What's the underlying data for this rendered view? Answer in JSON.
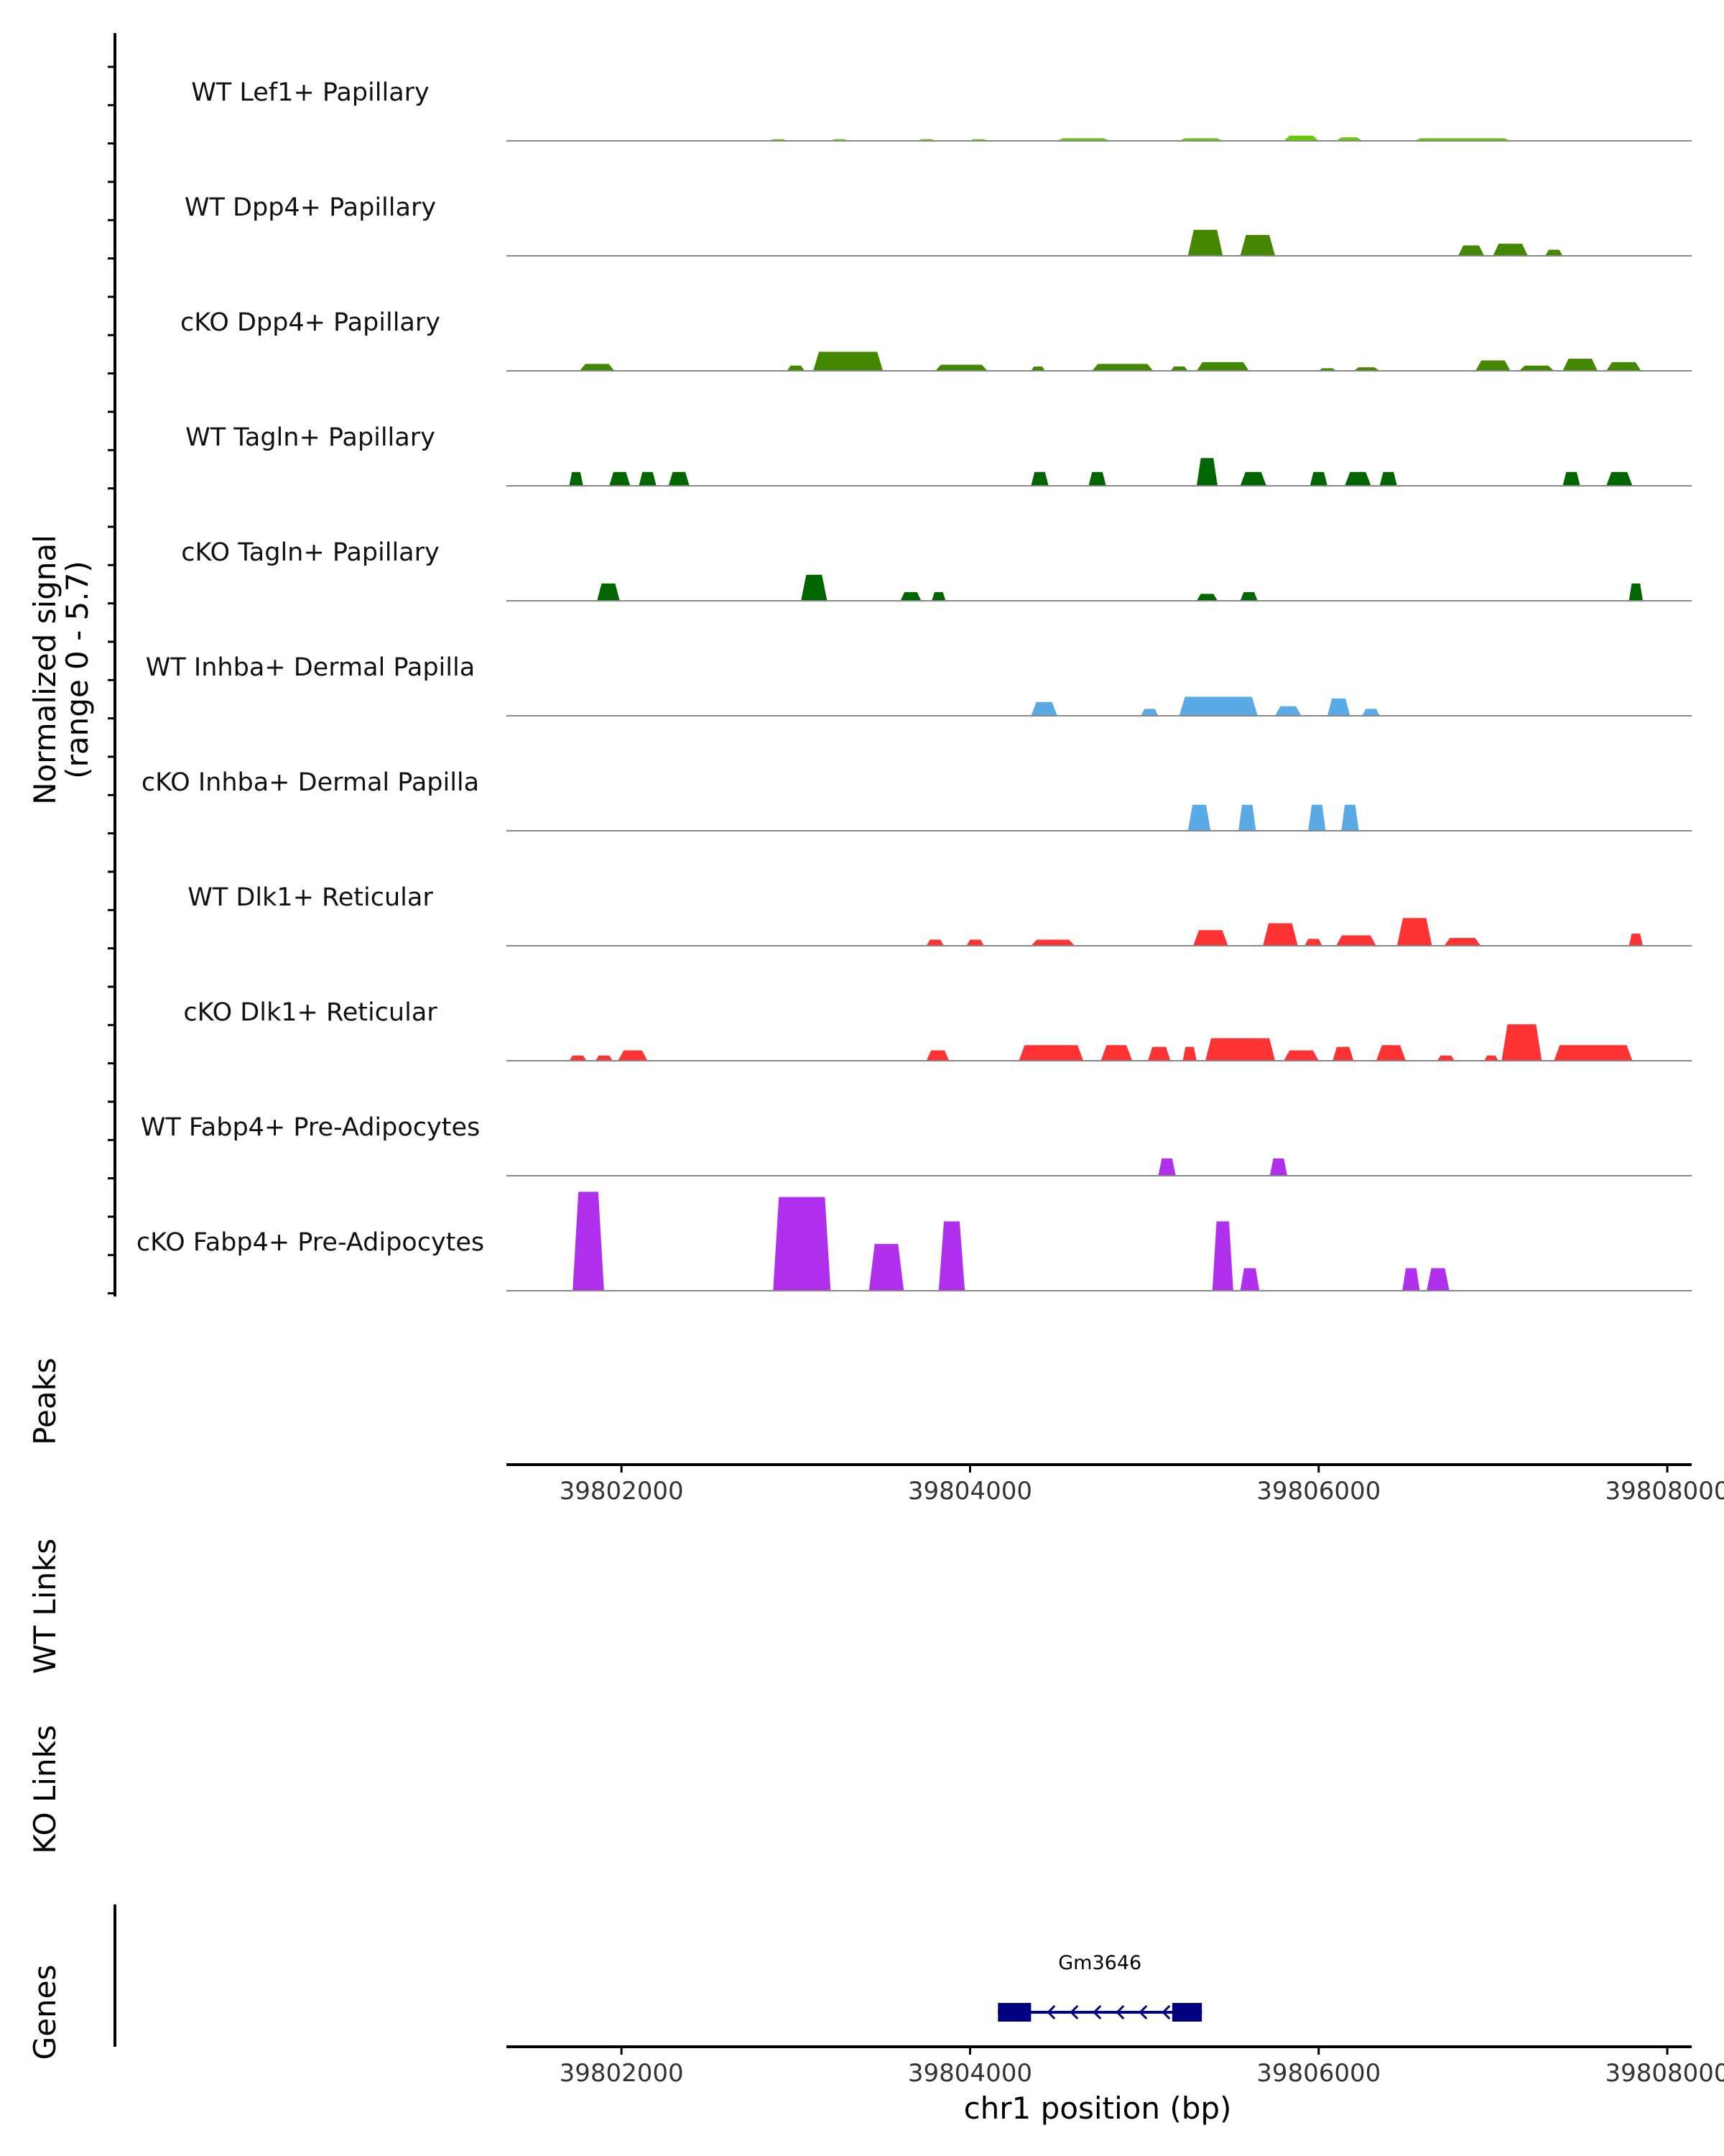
{
  "chart_data": {
    "type": "area",
    "title": "",
    "chromosome": "chr1",
    "xlabel": "chr1 position (bp)",
    "ylabel_line1": "Normalized signal",
    "ylabel_line2": "(range 0 - 5.7)",
    "ylim": [
      0,
      5.7
    ],
    "xlim": [
      39801340,
      39808140
    ],
    "x_ticks": [
      39802000,
      39804000,
      39806000,
      39808000
    ],
    "x_tick_labels_peaks": [
      "39802000",
      "39804000",
      "39806000",
      "39808000"
    ],
    "x_tick_labels_genes": [
      "39802000",
      "39804000",
      "39806000",
      "39808000"
    ],
    "track_labels": {
      "peaks": "Peaks",
      "wt_links": "WT Links",
      "ko_links": "KO Links",
      "genes": "Genes"
    },
    "series": [
      {
        "name": "WT Lef1+ Papillary",
        "color": "#66cc00",
        "regions": [
          [
            39802850,
            39802950,
            0.1
          ],
          [
            39803200,
            39803300,
            0.1
          ],
          [
            39803700,
            39803800,
            0.1
          ],
          [
            39804000,
            39804100,
            0.1
          ],
          [
            39804500,
            39804800,
            0.15
          ],
          [
            39805200,
            39805450,
            0.15
          ],
          [
            39805800,
            39806000,
            0.3
          ],
          [
            39806100,
            39806250,
            0.2
          ],
          [
            39806550,
            39807100,
            0.15
          ]
        ]
      },
      {
        "name": "WT Dpp4+ Papillary",
        "color": "#448800",
        "regions": [
          [
            39805250,
            39805450,
            1.5
          ],
          [
            39805550,
            39805750,
            1.2
          ],
          [
            39806800,
            39806950,
            0.6
          ],
          [
            39807000,
            39807200,
            0.7
          ],
          [
            39807300,
            39807400,
            0.35
          ]
        ]
      },
      {
        "name": "cKO Dpp4+ Papillary",
        "color": "#448800",
        "regions": [
          [
            39801760,
            39801960,
            0.4
          ],
          [
            39802950,
            39803050,
            0.3
          ],
          [
            39803100,
            39803500,
            1.1
          ],
          [
            39803800,
            39804100,
            0.35
          ],
          [
            39804350,
            39804430,
            0.25
          ],
          [
            39804700,
            39805050,
            0.4
          ],
          [
            39805150,
            39805250,
            0.25
          ],
          [
            39805300,
            39805600,
            0.5
          ],
          [
            39806000,
            39806100,
            0.15
          ],
          [
            39806200,
            39806350,
            0.2
          ],
          [
            39806900,
            39807100,
            0.6
          ],
          [
            39807150,
            39807350,
            0.3
          ],
          [
            39807400,
            39807600,
            0.7
          ],
          [
            39807650,
            39807850,
            0.5
          ]
        ]
      },
      {
        "name": "WT Tagln+ Papillary",
        "color": "#006600",
        "regions": [
          [
            39801700,
            39801780,
            0.8
          ],
          [
            39801930,
            39802050,
            0.8
          ],
          [
            39802100,
            39802200,
            0.8
          ],
          [
            39802270,
            39802390,
            0.8
          ],
          [
            39804350,
            39804450,
            0.8
          ],
          [
            39804680,
            39804780,
            0.8
          ],
          [
            39805300,
            39805420,
            1.6
          ],
          [
            39805550,
            39805700,
            0.8
          ],
          [
            39805950,
            39806050,
            0.8
          ],
          [
            39806150,
            39806300,
            0.8
          ],
          [
            39806350,
            39806450,
            0.8
          ],
          [
            39807400,
            39807500,
            0.8
          ],
          [
            39807650,
            39807800,
            0.8
          ]
        ]
      },
      {
        "name": "cKO Tagln+ Papillary",
        "color": "#006600",
        "regions": [
          [
            39801860,
            39801990,
            1.0
          ],
          [
            39803030,
            39803180,
            1.5
          ],
          [
            39803600,
            39803720,
            0.5
          ],
          [
            39803780,
            39803860,
            0.5
          ],
          [
            39805300,
            39805420,
            0.4
          ],
          [
            39805550,
            39805650,
            0.5
          ],
          [
            39807780,
            39807860,
            1.0
          ]
        ]
      },
      {
        "name": "WT Inhba+ Dermal Papilla",
        "color": "#5aaae6",
        "regions": [
          [
            39804350,
            39804500,
            0.8
          ],
          [
            39804980,
            39805080,
            0.4
          ],
          [
            39805200,
            39805650,
            1.1
          ],
          [
            39805750,
            39805900,
            0.55
          ],
          [
            39806050,
            39806180,
            1.0
          ],
          [
            39806250,
            39806350,
            0.4
          ]
        ]
      },
      {
        "name": "cKO Inhba+ Dermal Papilla",
        "color": "#5aaae6",
        "regions": [
          [
            39805250,
            39805380,
            1.5
          ],
          [
            39805540,
            39805640,
            1.5
          ],
          [
            39805940,
            39806040,
            1.5
          ],
          [
            39806130,
            39806230,
            1.5
          ]
        ]
      },
      {
        "name": "WT Dlk1+ Reticular",
        "color": "#ff3333",
        "regions": [
          [
            39803750,
            39803850,
            0.35
          ],
          [
            39803980,
            39804080,
            0.35
          ],
          [
            39804350,
            39804600,
            0.35
          ],
          [
            39805280,
            39805480,
            0.9
          ],
          [
            39805680,
            39805880,
            1.3
          ],
          [
            39805920,
            39806020,
            0.4
          ],
          [
            39806100,
            39806330,
            0.6
          ],
          [
            39806450,
            39806650,
            1.6
          ],
          [
            39806720,
            39806930,
            0.45
          ],
          [
            39807780,
            39807860,
            0.7
          ]
        ]
      },
      {
        "name": "cKO Dlk1+ Reticular",
        "color": "#ff3333",
        "regions": [
          [
            39801700,
            39801800,
            0.3
          ],
          [
            39801850,
            39801950,
            0.3
          ],
          [
            39801980,
            39802150,
            0.6
          ],
          [
            39803750,
            39803880,
            0.6
          ],
          [
            39804280,
            39804650,
            0.9
          ],
          [
            39804750,
            39804930,
            0.9
          ],
          [
            39805020,
            39805150,
            0.8
          ],
          [
            39805220,
            39805300,
            0.8
          ],
          [
            39805350,
            39805750,
            1.3
          ],
          [
            39805800,
            39806000,
            0.6
          ],
          [
            39806080,
            39806200,
            0.8
          ],
          [
            39806330,
            39806500,
            0.9
          ],
          [
            39806680,
            39806780,
            0.3
          ],
          [
            39806950,
            39807030,
            0.3
          ],
          [
            39807050,
            39807280,
            2.1
          ],
          [
            39807350,
            39807800,
            0.9
          ]
        ]
      },
      {
        "name": "WT Fabp4+ Pre-Adipocytes",
        "color": "#b030ee",
        "regions": [
          [
            39805080,
            39805180,
            1.0
          ],
          [
            39805720,
            39805820,
            1.0
          ]
        ]
      },
      {
        "name": "cKO Fabp4+ Pre-Adipocytes",
        "color": "#b030ee",
        "regions": [
          [
            39801720,
            39801900,
            5.7
          ],
          [
            39802870,
            39803200,
            5.4
          ],
          [
            39803420,
            39803620,
            2.7
          ],
          [
            39803820,
            39803970,
            4.0
          ],
          [
            39805390,
            39805510,
            4.0
          ],
          [
            39805550,
            39805660,
            1.3
          ],
          [
            39806480,
            39806580,
            1.3
          ],
          [
            39806620,
            39806750,
            1.3
          ]
        ]
      }
    ],
    "genes": [
      {
        "name": "Gm3646",
        "start": 39804160,
        "end": 39805330,
        "strand": "-",
        "exons": [
          [
            39804160,
            39804350
          ],
          [
            39805160,
            39805330
          ]
        ]
      }
    ],
    "colors": {
      "baseline": "#888888",
      "axis": "#000000",
      "gene": "#000080"
    }
  }
}
